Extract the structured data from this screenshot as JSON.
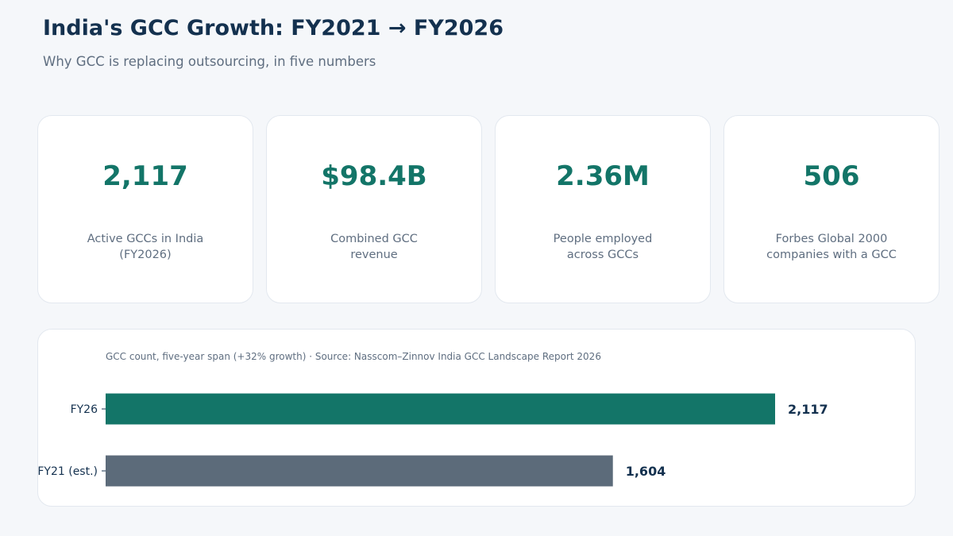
{
  "header": {
    "title": "India's GCC Growth: FY2021 → FY2026",
    "subtitle": "Why GCC is replacing outsourcing, in five numbers"
  },
  "stats": [
    {
      "value": "2,117",
      "label": "Active GCCs in India\n(FY2026)"
    },
    {
      "value": "$98.4B",
      "label": "Combined GCC\nrevenue"
    },
    {
      "value": "2.36M",
      "label": "People employed\nacross GCCs"
    },
    {
      "value": "506",
      "label": "Forbes Global 2000\ncompanies with a GCC"
    }
  ],
  "colors": {
    "accent": "#137568",
    "secondary_bar": "#5c6b7a",
    "heading": "#14314f",
    "muted_text": "#5f6e80"
  },
  "chart_data": {
    "type": "bar",
    "orientation": "horizontal",
    "title": "GCC count, five-year span  (+32% growth)  ·  Source: Nasscom–Zinnov India GCC Landscape Report 2026",
    "categories": [
      "FY26",
      "FY21 (est.)"
    ],
    "values": [
      2117,
      1604
    ],
    "value_labels": [
      "2,117",
      "1,604"
    ],
    "bar_colors": [
      "#137568",
      "#5c6b7a"
    ],
    "xlim": [
      0,
      2117
    ],
    "xlabel": "",
    "ylabel": "",
    "grid": false,
    "legend": "none"
  }
}
